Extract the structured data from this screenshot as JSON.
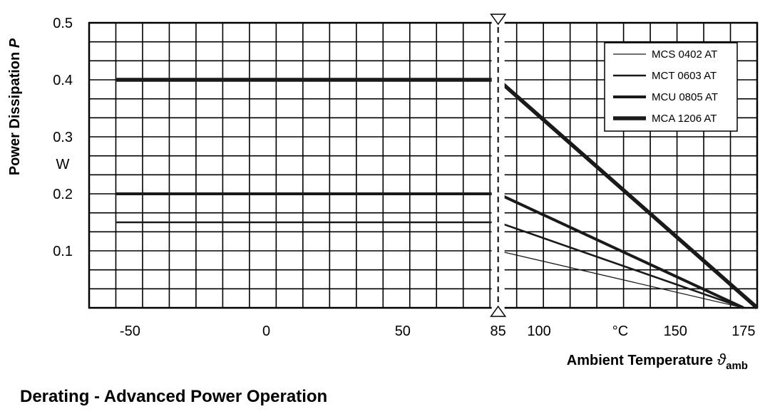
{
  "caption": "Derating - Advanced Power Operation",
  "chart_data": {
    "type": "line",
    "title": "",
    "ylabel": "Power Dissipation",
    "ylabel_symbol": "P",
    "yunit": "W",
    "xlabel": "Ambient Temperature",
    "xlabel_symbol": "ϑ",
    "xlabel_subscript": "amb",
    "xunit": "°C",
    "xlim": [
      -65,
      180
    ],
    "ylim": [
      0,
      0.5
    ],
    "xticks": [
      "-50",
      "0",
      "50",
      "85",
      "100",
      "150",
      "175"
    ],
    "yticks": [
      "0.1",
      "0.2",
      "0.3",
      "0.4",
      "0.5"
    ],
    "grid": true,
    "legend_position": "top-right",
    "reference_line": {
      "x": 85,
      "style": "dashed"
    },
    "series": [
      {
        "name": "MCS 0402 AT",
        "x": [
          85,
          175
        ],
        "y": [
          0.1,
          0
        ]
      },
      {
        "name": "MCT 0603 AT",
        "x": [
          -55,
          85,
          175
        ],
        "y": [
          0.15,
          0.15,
          0
        ]
      },
      {
        "name": "MCU 0805 AT",
        "x": [
          -55,
          85,
          175
        ],
        "y": [
          0.2,
          0.2,
          0
        ]
      },
      {
        "name": "MCA 1206 AT",
        "x": [
          -55,
          85,
          180
        ],
        "y": [
          0.4,
          0.4,
          0
        ]
      }
    ]
  }
}
